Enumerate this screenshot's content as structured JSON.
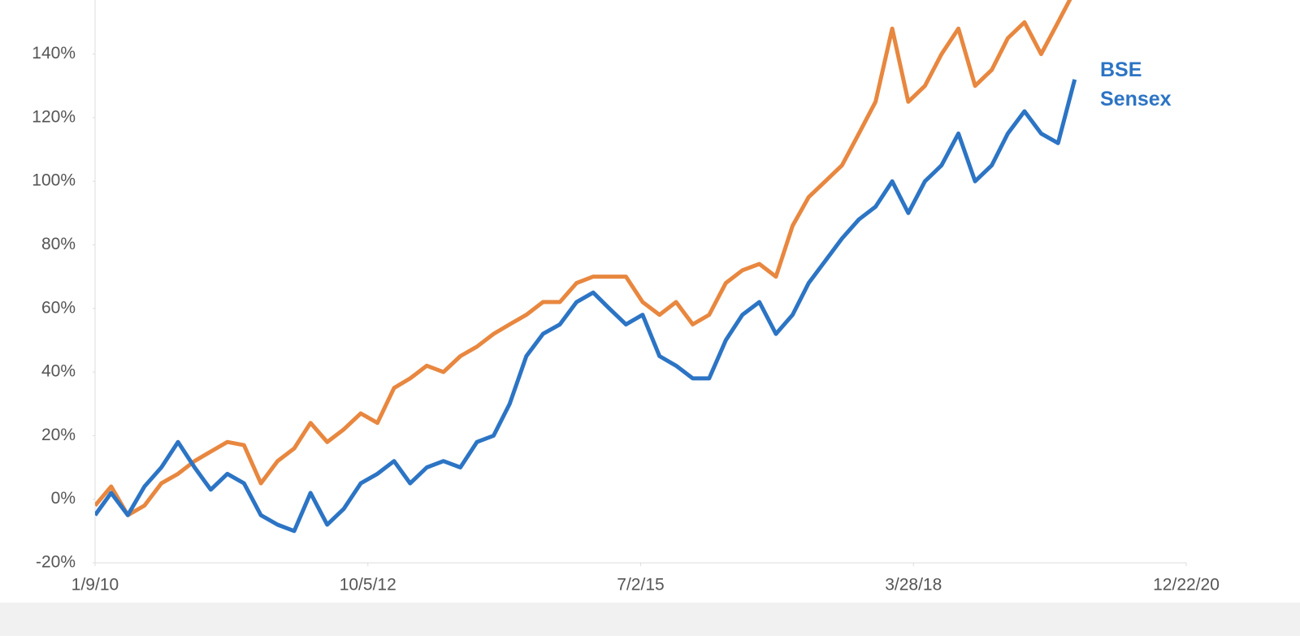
{
  "chart_data": {
    "type": "line",
    "x": [
      "1/9/10",
      "3/9/10",
      "5/9/10",
      "7/9/10",
      "9/9/10",
      "11/9/10",
      "1/9/11",
      "3/9/11",
      "5/9/11",
      "7/9/11",
      "9/9/11",
      "11/9/11",
      "1/9/12",
      "3/9/12",
      "5/9/12",
      "7/9/12",
      "9/9/12",
      "11/9/12",
      "1/9/13",
      "3/9/13",
      "5/9/13",
      "7/9/13",
      "9/9/13",
      "11/9/13",
      "1/9/14",
      "3/9/14",
      "5/9/14",
      "7/9/14",
      "9/9/14",
      "11/9/14",
      "1/9/15",
      "3/9/15",
      "5/9/15",
      "7/9/15",
      "9/9/15",
      "11/9/15",
      "1/9/16",
      "3/9/16",
      "5/9/16",
      "7/9/16",
      "9/9/16",
      "11/9/16",
      "1/9/17",
      "3/9/17",
      "5/9/17",
      "7/9/17",
      "9/9/17",
      "11/9/17",
      "1/9/18",
      "3/9/18",
      "5/9/18",
      "7/9/18",
      "9/9/18",
      "11/9/18",
      "1/9/19",
      "3/9/19",
      "5/9/19",
      "7/9/19",
      "9/9/19",
      "11/9/19"
    ],
    "series": [
      {
        "color": "#e8873f",
        "values": [
          -2,
          4,
          -5,
          -2,
          5,
          8,
          12,
          15,
          18,
          17,
          5,
          12,
          16,
          24,
          18,
          22,
          27,
          24,
          35,
          38,
          42,
          40,
          45,
          48,
          52,
          55,
          58,
          62,
          62,
          68,
          70,
          70,
          70,
          62,
          58,
          62,
          55,
          58,
          68,
          72,
          74,
          70,
          86,
          95,
          100,
          105,
          115,
          125,
          148,
          125,
          130,
          140,
          148,
          130,
          135,
          145,
          150,
          140,
          150,
          160
        ]
      },
      {
        "name": "BSE Sensex",
        "color": "#2c74c4",
        "values": [
          -5,
          2,
          -5,
          4,
          10,
          18,
          10,
          3,
          8,
          5,
          -5,
          -8,
          -10,
          2,
          -8,
          -3,
          5,
          8,
          12,
          5,
          10,
          12,
          10,
          18,
          20,
          30,
          45,
          52,
          55,
          62,
          65,
          60,
          55,
          58,
          45,
          42,
          38,
          38,
          50,
          58,
          62,
          52,
          58,
          68,
          75,
          82,
          88,
          92,
          100,
          90,
          100,
          105,
          115,
          100,
          105,
          115,
          122,
          115,
          112,
          132
        ]
      }
    ],
    "xlim": [
      "1/9/10",
      "12/22/20"
    ],
    "xticks": [
      "1/9/10",
      "10/5/12",
      "7/2/15",
      "3/28/18",
      "12/22/20"
    ],
    "ylim": [
      -20,
      157
    ],
    "yticks": [
      {
        "value": -20,
        "label": "-20%"
      },
      {
        "value": 0,
        "label": "0%"
      },
      {
        "value": 20,
        "label": "20%"
      },
      {
        "value": 40,
        "label": "40%"
      },
      {
        "value": 60,
        "label": "60%"
      },
      {
        "value": 80,
        "label": "80%"
      },
      {
        "value": 100,
        "label": "100%"
      },
      {
        "value": 120,
        "label": "120%"
      },
      {
        "value": 140,
        "label": "140%"
      }
    ],
    "grid": false
  }
}
